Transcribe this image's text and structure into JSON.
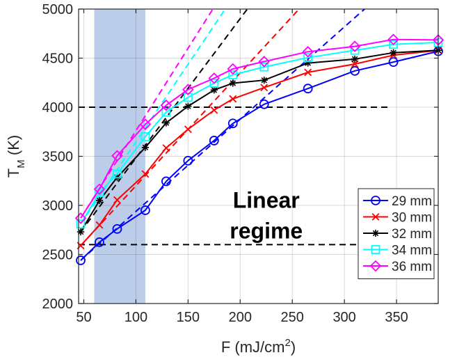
{
  "chart_data": {
    "type": "line",
    "xlabel": {
      "base": "F (mJ/cm",
      "sup": "2",
      "tail": ")"
    },
    "ylabel": {
      "base": "T",
      "sub": "M",
      "tail": " (K)"
    },
    "xlim": [
      45,
      390
    ],
    "ylim": [
      2000,
      5000
    ],
    "xticks": [
      50,
      100,
      150,
      200,
      250,
      300,
      350
    ],
    "yticks": [
      2000,
      2500,
      3000,
      3500,
      4000,
      4500,
      5000
    ],
    "grid": true,
    "legend_position": "bottom-right",
    "shaded_band": {
      "x": [
        60,
        109
      ],
      "color": "#b0c4e6"
    },
    "annotation": {
      "lines": [
        "Linear",
        "regime"
      ],
      "x": 225,
      "y": 2975
    },
    "reference_lines": [
      {
        "y": 4000,
        "x": [
          45,
          345
        ],
        "color": "#000000"
      },
      {
        "y": 2600,
        "x": [
          45,
          345
        ],
        "color": "#000000"
      }
    ],
    "series": [
      {
        "name": "29 mm",
        "color": "#0000ff",
        "marker": "circle",
        "x": [
          47,
          65,
          82,
          109,
          129,
          150,
          175,
          193,
          223,
          265,
          310,
          347,
          390
        ],
        "y": [
          2440,
          2625,
          2760,
          2950,
          3245,
          3455,
          3660,
          3835,
          4030,
          4190,
          4370,
          4460,
          4570
        ],
        "fit": {
          "x0": 47,
          "y0": 2440,
          "slope": 9.4
        }
      },
      {
        "name": "30 mm",
        "color": "#ff0000",
        "marker": "x",
        "x": [
          47,
          65,
          82,
          109,
          129,
          150,
          175,
          193,
          223,
          265,
          310,
          347,
          390
        ],
        "y": [
          2590,
          2800,
          3055,
          3320,
          3585,
          3775,
          3970,
          4085,
          4200,
          4355,
          4440,
          4530,
          4580
        ],
        "fit": {
          "x0": 47,
          "y0": 2590,
          "slope": 11.5
        }
      },
      {
        "name": "32 mm",
        "color": "#000000",
        "marker": "star",
        "x": [
          47,
          65,
          82,
          109,
          129,
          150,
          175,
          193,
          223,
          265,
          310,
          347,
          390
        ],
        "y": [
          2730,
          3050,
          3285,
          3590,
          3840,
          4010,
          4175,
          4245,
          4275,
          4450,
          4490,
          4555,
          4580
        ],
        "fit": {
          "x0": 47,
          "y0": 2730,
          "slope": 14.2
        }
      },
      {
        "name": "34 mm",
        "color": "#00ffff",
        "marker": "square",
        "x": [
          47,
          65,
          82,
          109,
          129,
          150,
          175,
          193,
          223,
          265,
          310,
          347,
          390
        ],
        "y": [
          2810,
          3130,
          3320,
          3700,
          3950,
          4100,
          4245,
          4330,
          4410,
          4505,
          4580,
          4640,
          4660
        ],
        "fit": {
          "x0": 47,
          "y0": 2810,
          "slope": 15.8
        }
      },
      {
        "name": "36 mm",
        "color": "#ff00ff",
        "marker": "diamond",
        "x": [
          47,
          65,
          82,
          109,
          129,
          150,
          175,
          193,
          223,
          265,
          310,
          347,
          390
        ],
        "y": [
          2870,
          3165,
          3505,
          3825,
          4020,
          4180,
          4295,
          4390,
          4465,
          4565,
          4620,
          4690,
          4685
        ],
        "fit": {
          "x0": 47,
          "y0": 2870,
          "slope": 16.8
        }
      }
    ]
  }
}
